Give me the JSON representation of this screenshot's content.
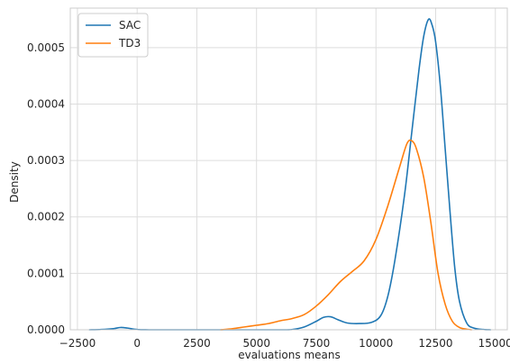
{
  "chart_data": {
    "type": "line",
    "title": "",
    "xlabel": "evaluations means",
    "ylabel": "Density",
    "xlim": [
      -2800,
      15500
    ],
    "ylim": [
      0,
      0.00057
    ],
    "xticks": [
      -2500,
      0,
      2500,
      5000,
      7500,
      10000,
      12500,
      15000
    ],
    "xtick_labels": [
      "−2500",
      "0",
      "2500",
      "5000",
      "7500",
      "10000",
      "12500",
      "15000"
    ],
    "yticks": [
      0,
      0.0001,
      0.0002,
      0.0003,
      0.0004,
      0.0005
    ],
    "ytick_labels": [
      "0.0000",
      "0.0001",
      "0.0002",
      "0.0003",
      "0.0004",
      "0.0005"
    ],
    "grid": true,
    "legend_position": "top-left",
    "series": [
      {
        "name": "SAC",
        "color": "#1f77b4",
        "points": [
          [
            -2000,
            0
          ],
          [
            -1500,
            5e-07
          ],
          [
            -1000,
            2e-06
          ],
          [
            -700,
            4e-06
          ],
          [
            -400,
            3e-06
          ],
          [
            0,
            5e-07
          ],
          [
            500,
            0
          ],
          [
            3000,
            0
          ],
          [
            6000,
            0
          ],
          [
            6500,
            5e-07
          ],
          [
            7000,
            5e-06
          ],
          [
            7500,
            1.5e-05
          ],
          [
            7800,
            2.2e-05
          ],
          [
            8100,
            2.3e-05
          ],
          [
            8400,
            1.8e-05
          ],
          [
            8800,
            1.2e-05
          ],
          [
            9300,
            1.1e-05
          ],
          [
            9800,
            1.3e-05
          ],
          [
            10200,
            2.5e-05
          ],
          [
            10500,
            6e-05
          ],
          [
            10800,
            0.000125
          ],
          [
            11200,
            0.00024
          ],
          [
            11500,
            0.00035
          ],
          [
            11800,
            0.00046
          ],
          [
            12000,
            0.00052
          ],
          [
            12200,
            0.00055
          ],
          [
            12350,
            0.00054
          ],
          [
            12500,
            0.00051
          ],
          [
            12700,
            0.00043
          ],
          [
            12900,
            0.00032
          ],
          [
            13100,
            0.00021
          ],
          [
            13300,
            0.00011
          ],
          [
            13500,
            5e-05
          ],
          [
            13800,
            1.2e-05
          ],
          [
            14100,
            3e-06
          ],
          [
            14500,
            5e-07
          ],
          [
            14800,
            0
          ]
        ]
      },
      {
        "name": "TD3",
        "color": "#ff7f0e",
        "points": [
          [
            3500,
            0
          ],
          [
            4000,
            2e-06
          ],
          [
            4500,
            5e-06
          ],
          [
            5000,
            8e-06
          ],
          [
            5500,
            1.1e-05
          ],
          [
            6000,
            1.6e-05
          ],
          [
            6500,
            2e-05
          ],
          [
            7000,
            2.7e-05
          ],
          [
            7500,
            4.2e-05
          ],
          [
            8000,
            6.2e-05
          ],
          [
            8500,
            8.5e-05
          ],
          [
            9000,
            0.000103
          ],
          [
            9500,
            0.000122
          ],
          [
            10000,
            0.00016
          ],
          [
            10500,
            0.00022
          ],
          [
            11000,
            0.00029
          ],
          [
            11300,
            0.00033
          ],
          [
            11500,
            0.000335
          ],
          [
            11700,
            0.00032
          ],
          [
            12000,
            0.00027
          ],
          [
            12300,
            0.00019
          ],
          [
            12600,
            0.0001
          ],
          [
            12900,
            4.5e-05
          ],
          [
            13200,
            1.5e-05
          ],
          [
            13500,
            4e-06
          ],
          [
            13800,
            1e-06
          ],
          [
            14000,
            0
          ]
        ]
      }
    ]
  }
}
